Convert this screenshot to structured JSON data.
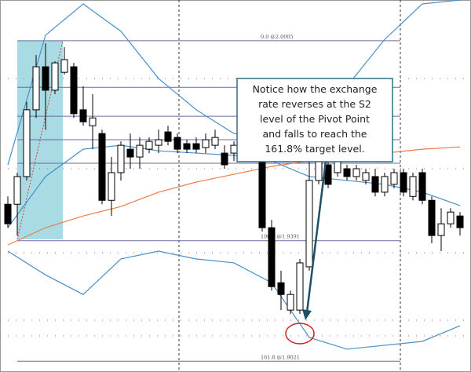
{
  "chart_data": {
    "type": "candlestick",
    "ylim": [
      1.8988,
      2.013
    ],
    "up_color": "#ffffff",
    "down_color": "#000000",
    "open": [
      1.9503,
      1.9503,
      1.9588,
      1.9793,
      1.9925,
      1.9853,
      1.9908,
      1.9925,
      1.9793,
      1.9744,
      1.972,
      1.9515,
      1.96,
      1.9672,
      1.9648,
      1.9672,
      1.9684,
      1.9725,
      1.9708,
      1.9689,
      1.9689,
      1.9677,
      1.9684,
      1.966,
      1.966,
      1.9708,
      1.966,
      1.9648,
      1.9431,
      1.9262,
      1.9178,
      1.9178,
      1.9311,
      1.9576,
      1.9624,
      1.96,
      1.9612,
      1.9588,
      1.9576,
      1.9588,
      1.954,
      1.9564,
      1.96,
      1.9527,
      1.96,
      1.9515,
      1.9407,
      1.9443,
      1.9467
    ],
    "high": [
      1.9527,
      1.96,
      1.9817,
      1.9961,
      1.9997,
      1.9942,
      1.9985,
      1.9937,
      1.9865,
      1.9841,
      1.9732,
      1.9648,
      1.9696,
      1.972,
      1.9708,
      1.9708,
      1.9732,
      1.9744,
      1.972,
      1.9701,
      1.9708,
      1.972,
      1.9732,
      1.9684,
      1.9696,
      1.9732,
      1.972,
      1.966,
      1.9455,
      1.9299,
      1.9238,
      1.9335,
      1.9648,
      1.966,
      1.966,
      1.966,
      1.9624,
      1.9624,
      1.9612,
      1.9612,
      1.96,
      1.9612,
      1.9612,
      1.96,
      1.9612,
      1.9527,
      1.9491,
      1.9491,
      1.9479
    ],
    "low": [
      1.9431,
      1.9407,
      1.9576,
      1.9768,
      1.9732,
      1.9841,
      1.9901,
      1.9768,
      1.9744,
      1.9672,
      1.9503,
      1.9467,
      1.9576,
      1.9612,
      1.9612,
      1.966,
      1.966,
      1.9684,
      1.966,
      1.966,
      1.966,
      1.966,
      1.9672,
      1.9612,
      1.9636,
      1.9636,
      1.9648,
      1.9419,
      1.9238,
      1.9178,
      1.9166,
      1.9166,
      1.9299,
      1.9564,
      1.9552,
      1.9588,
      1.9576,
      1.9576,
      1.9564,
      1.9527,
      1.9527,
      1.9552,
      1.9527,
      1.9515,
      1.9503,
      1.9383,
      1.9359,
      1.9431,
      1.9407
    ],
    "close": [
      1.9443,
      1.9588,
      1.9793,
      1.9925,
      1.9853,
      1.9937,
      1.9947,
      1.9781,
      1.9756,
      1.9768,
      1.9515,
      1.96,
      1.9684,
      1.9648,
      1.9684,
      1.9696,
      1.9701,
      1.9696,
      1.9672,
      1.9672,
      1.9672,
      1.9701,
      1.9708,
      1.9624,
      1.9684,
      1.9648,
      1.9696,
      1.9431,
      1.925,
      1.9226,
      1.9226,
      1.9323,
      1.9576,
      1.9648,
      1.9564,
      1.9648,
      1.9588,
      1.9612,
      1.96,
      1.954,
      1.9588,
      1.96,
      1.954,
      1.9588,
      1.9515,
      1.9407,
      1.9443,
      1.9479,
      1.9431
    ],
    "series": [
      {
        "color": "#4a8fc9",
        "x": [
          0,
          4,
          8,
          12,
          16,
          20,
          24,
          28,
          32,
          36,
          40,
          44,
          48
        ],
        "values": [
          1.9624,
          2.0022,
          2.0118,
          2.0034,
          1.9889,
          1.9793,
          1.972,
          1.9708,
          1.9768,
          1.9865,
          2.0009,
          2.0118,
          2.013
        ]
      },
      {
        "color": "#4a8fc9",
        "x": [
          0,
          4,
          8,
          12,
          16,
          20,
          24,
          28,
          32,
          36,
          40,
          44,
          48
        ],
        "values": [
          1.9431,
          1.9588,
          1.9672,
          1.9684,
          1.9667,
          1.966,
          1.9653,
          1.9636,
          1.9588,
          1.9576,
          1.9564,
          1.954,
          1.9499
        ]
      },
      {
        "color": "#4a8fc9",
        "x": [
          0,
          4,
          8,
          12,
          16,
          20,
          24,
          28,
          32,
          36,
          40,
          44,
          48
        ],
        "values": [
          1.9359,
          1.9286,
          1.9226,
          1.9335,
          1.9359,
          1.9335,
          1.9323,
          1.9262,
          1.9094,
          1.9058,
          1.907,
          1.9082,
          1.913
        ]
      },
      {
        "color": "#f07a45",
        "x": [
          0,
          4,
          8,
          12,
          16,
          20,
          24,
          28,
          32,
          36,
          40,
          44,
          48
        ],
        "values": [
          1.9378,
          1.9431,
          1.9467,
          1.9496,
          1.954,
          1.9571,
          1.9595,
          1.9619,
          1.9636,
          1.9648,
          1.966,
          1.9672,
          1.9679
        ]
      }
    ],
    "fib_color": "#6a6aa8",
    "fib_levels": [
      2.0005,
      1.9862,
      1.9773,
      1.9701,
      1.9629,
      1.9391,
      1.9021
    ],
    "fib_labels": [
      "0.0 @2.0005",
      null,
      null,
      null,
      null,
      "100.0 @1.9391",
      "161.8 @1.9021"
    ],
    "pivot_color": "#e05050",
    "pivot_levels": [
      1.9889,
      1.9612,
      1.9354,
      1.9147,
      1.9099
    ],
    "annotation_lines": [
      "Notice how the exchange",
      "rate reverses at the S2",
      "level of the Pivot Point",
      "and falls to reach the",
      "161.8% target level."
    ]
  }
}
